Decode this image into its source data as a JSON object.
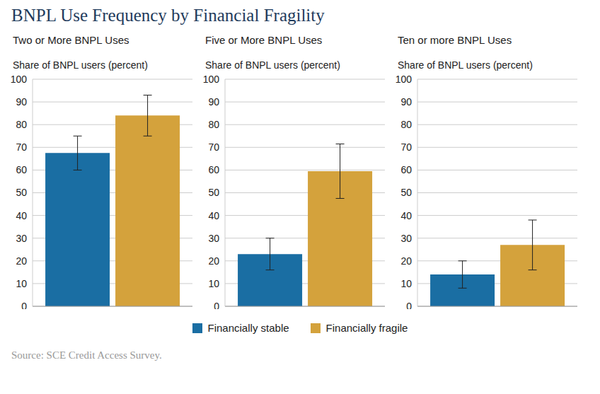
{
  "title": "BNPL Use Frequency by Financial Fragility",
  "source": "Source: SCE Credit Access Survey.",
  "legend": "bottom",
  "chart_data": [
    {
      "type": "bar",
      "title": "Two or More BNPL Uses",
      "ylabel": "Share of BNPL users (percent)",
      "categories": [
        null
      ],
      "ylim": [
        0,
        100
      ],
      "yticks": [
        0,
        10,
        20,
        30,
        40,
        50,
        60,
        70,
        80,
        90,
        100
      ],
      "grid": true,
      "tick_labels": "y",
      "series": [
        {
          "name": "Financially stable",
          "color": "#1a6ea3",
          "values": [
            67.5
          ],
          "errors": [
            7.5
          ]
        },
        {
          "name": "Financially fragile",
          "color": "#d4a23c",
          "values": [
            84
          ],
          "errors": [
            9
          ]
        }
      ]
    },
    {
      "type": "bar",
      "title": "Five or More BNPL Uses",
      "ylabel": "Share of BNPL users (percent)",
      "categories": [
        null
      ],
      "ylim": [
        0,
        100
      ],
      "yticks": [
        0,
        10,
        20,
        30,
        40,
        50,
        60,
        70,
        80,
        90,
        100
      ],
      "grid": true,
      "tick_labels": "y",
      "series": [
        {
          "name": "Financially stable",
          "color": "#1a6ea3",
          "values": [
            23
          ],
          "errors": [
            7
          ]
        },
        {
          "name": "Financially fragile",
          "color": "#d4a23c",
          "values": [
            59.5
          ],
          "errors": [
            12
          ]
        }
      ]
    },
    {
      "type": "bar",
      "title": "Ten or more BNPL Uses",
      "ylabel": "Share of BNPL users (percent)",
      "categories": [
        null
      ],
      "ylim": [
        0,
        100
      ],
      "yticks": [
        0,
        10,
        20,
        30,
        40,
        50,
        60,
        70,
        80,
        90,
        100
      ],
      "grid": true,
      "tick_labels": "y",
      "series": [
        {
          "name": "Financially stable",
          "color": "#1a6ea3",
          "values": [
            14
          ],
          "errors": [
            6
          ]
        },
        {
          "name": "Financially fragile",
          "color": "#d4a23c",
          "values": [
            27
          ],
          "errors": [
            11
          ]
        }
      ]
    }
  ]
}
